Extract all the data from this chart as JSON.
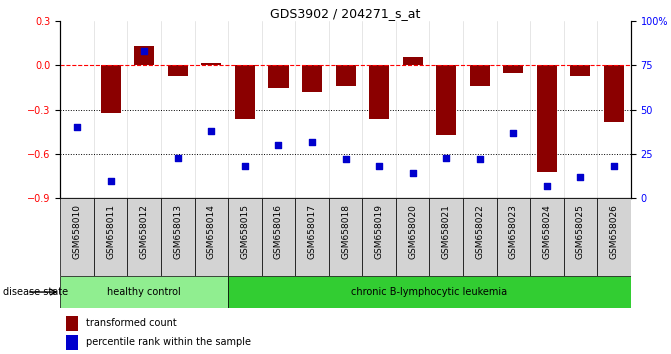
{
  "title": "GDS3902 / 204271_s_at",
  "samples": [
    "GSM658010",
    "GSM658011",
    "GSM658012",
    "GSM658013",
    "GSM658014",
    "GSM658015",
    "GSM658016",
    "GSM658017",
    "GSM658018",
    "GSM658019",
    "GSM658020",
    "GSM658021",
    "GSM658022",
    "GSM658023",
    "GSM658024",
    "GSM658025",
    "GSM658026"
  ],
  "bar_values": [
    0.0,
    -0.32,
    0.13,
    -0.07,
    0.02,
    -0.36,
    -0.15,
    -0.18,
    -0.14,
    -0.36,
    0.06,
    -0.47,
    -0.14,
    -0.05,
    -0.72,
    -0.07,
    -0.38
  ],
  "percentile_values": [
    40,
    10,
    83,
    23,
    38,
    18,
    30,
    32,
    22,
    18,
    14,
    23,
    22,
    37,
    7,
    12,
    18
  ],
  "healthy_count": 5,
  "ylim_left": [
    -0.9,
    0.3
  ],
  "ylim_right": [
    0,
    100
  ],
  "yticks_left": [
    -0.9,
    -0.6,
    -0.3,
    0.0,
    0.3
  ],
  "yticks_right": [
    0,
    25,
    50,
    75,
    100
  ],
  "bar_color": "#8B0000",
  "point_color": "#0000CD",
  "healthy_color": "#90EE90",
  "leukemia_color": "#32CD32",
  "label_bg_color": "#D3D3D3",
  "group_labels": [
    "healthy control",
    "chronic B-lymphocytic leukemia"
  ],
  "legend_labels": [
    "transformed count",
    "percentile rank within the sample"
  ],
  "disease_state_label": "disease state"
}
